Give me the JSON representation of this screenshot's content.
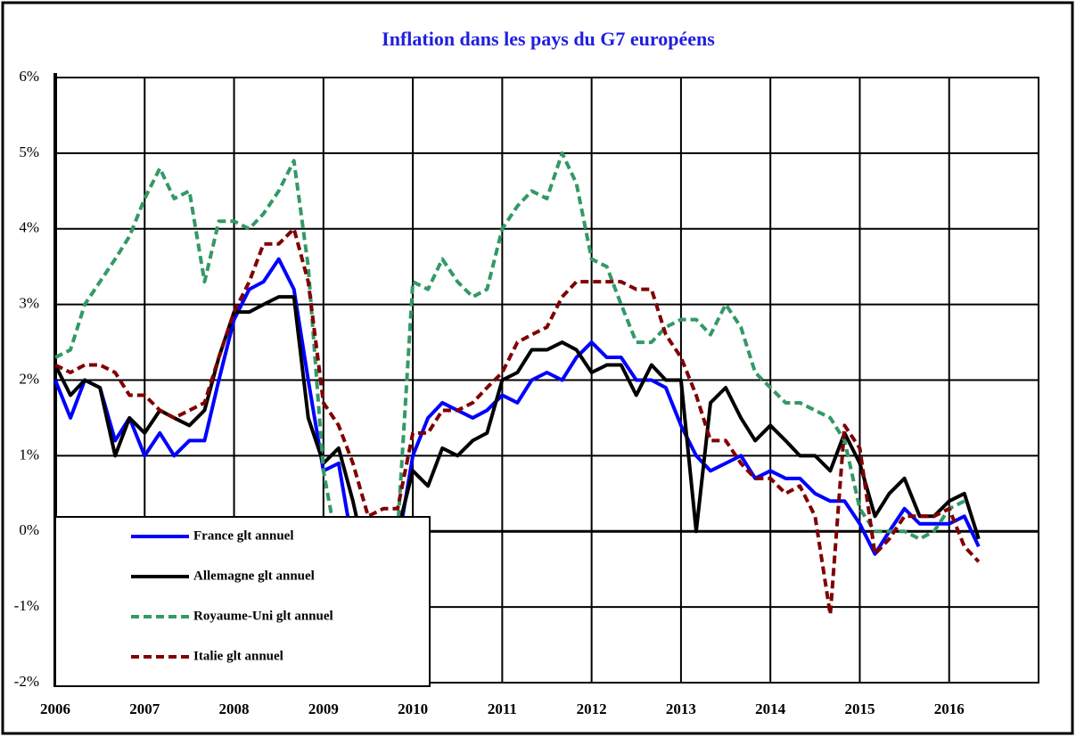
{
  "chart_data": {
    "type": "line",
    "title": "Inflation dans les pays du  G7 européens",
    "x": [
      2006,
      2006.17,
      2006.33,
      2006.5,
      2006.67,
      2006.83,
      2007,
      2007.17,
      2007.33,
      2007.5,
      2007.67,
      2007.83,
      2008,
      2008.17,
      2008.33,
      2008.5,
      2008.67,
      2008.83,
      2009,
      2009.17,
      2009.33,
      2009.5,
      2009.67,
      2009.83,
      2010,
      2010.17,
      2010.33,
      2010.5,
      2010.67,
      2010.83,
      2011,
      2011.17,
      2011.33,
      2011.5,
      2011.67,
      2011.83,
      2012,
      2012.17,
      2012.33,
      2012.5,
      2012.67,
      2012.83,
      2013,
      2013.17,
      2013.33,
      2013.5,
      2013.67,
      2013.83,
      2014,
      2014.17,
      2014.33,
      2014.5,
      2014.67,
      2014.83,
      2015,
      2015.17,
      2015.33,
      2015.5,
      2015.67,
      2015.83,
      2016,
      2016.17,
      2016.33
    ],
    "series": [
      {
        "name": "France glt annuel",
        "color": "#0000ff",
        "dashed": false,
        "values": [
          2.0,
          1.5,
          2.0,
          1.9,
          1.2,
          1.5,
          1.0,
          1.3,
          1.0,
          1.2,
          1.2,
          2.0,
          2.8,
          3.2,
          3.3,
          3.6,
          3.2,
          2.0,
          0.8,
          0.9,
          -0.2,
          -0.7,
          -0.4,
          -0.2,
          1.0,
          1.5,
          1.7,
          1.6,
          1.5,
          1.6,
          1.8,
          1.7,
          2.0,
          2.1,
          2.0,
          2.3,
          2.5,
          2.3,
          2.3,
          2.0,
          2.0,
          1.9,
          1.4,
          1.0,
          0.8,
          0.9,
          1.0,
          0.7,
          0.8,
          0.7,
          0.7,
          0.5,
          0.4,
          0.4,
          0.1,
          -0.3,
          0.0,
          0.3,
          0.1,
          0.1,
          0.1,
          0.2,
          -0.2
        ]
      },
      {
        "name": "Allemagne glt annuel",
        "color": "#000000",
        "dashed": false,
        "values": [
          2.2,
          1.8,
          2.0,
          1.9,
          1.0,
          1.5,
          1.3,
          1.6,
          1.5,
          1.4,
          1.6,
          2.3,
          2.9,
          2.9,
          3.0,
          3.1,
          3.1,
          1.5,
          0.9,
          1.1,
          0.4,
          -0.5,
          -0.3,
          0.0,
          0.8,
          0.6,
          1.1,
          1.0,
          1.2,
          1.3,
          2.0,
          2.1,
          2.4,
          2.4,
          2.5,
          2.4,
          2.1,
          2.2,
          2.2,
          1.8,
          2.2,
          2.0,
          2.0,
          0.0,
          1.7,
          1.9,
          1.5,
          1.2,
          1.4,
          1.2,
          1.0,
          1.0,
          0.8,
          1.3,
          0.9,
          0.2,
          0.5,
          0.7,
          0.2,
          0.2,
          0.4,
          0.5,
          -0.1
        ]
      },
      {
        "name": "Royaume-Uni glt annuel",
        "color": "#339966",
        "dashed": true,
        "values": [
          2.3,
          2.4,
          3.0,
          3.3,
          3.6,
          3.9,
          4.4,
          4.8,
          4.4,
          4.5,
          3.3,
          4.1,
          4.1,
          4.0,
          4.2,
          4.5,
          4.9,
          3.5,
          0.8,
          -0.3,
          -0.5,
          -0.5,
          -0.4,
          0.0,
          3.3,
          3.2,
          3.6,
          3.3,
          3.1,
          3.2,
          4.0,
          4.3,
          4.5,
          4.4,
          5.0,
          4.6,
          3.6,
          3.5,
          3.0,
          2.5,
          2.5,
          2.7,
          2.8,
          2.8,
          2.6,
          3.0,
          2.7,
          2.1,
          1.9,
          1.7,
          1.7,
          1.6,
          1.5,
          1.2,
          0.3,
          0.0,
          0.0,
          0.0,
          -0.1,
          0.0,
          0.3,
          0.4,
          null
        ]
      },
      {
        "name": "Italie glt annuel",
        "color": "#800000",
        "dashed": true,
        "values": [
          2.2,
          2.1,
          2.2,
          2.2,
          2.1,
          1.8,
          1.8,
          1.6,
          1.5,
          1.6,
          1.7,
          2.3,
          2.9,
          3.3,
          3.8,
          3.8,
          4.0,
          3.3,
          1.7,
          1.4,
          0.9,
          0.2,
          0.3,
          0.3,
          1.3,
          1.3,
          1.6,
          1.6,
          1.7,
          1.9,
          2.1,
          2.5,
          2.6,
          2.7,
          3.1,
          3.3,
          3.3,
          3.3,
          3.3,
          3.2,
          3.2,
          2.6,
          2.3,
          1.8,
          1.2,
          1.2,
          0.9,
          0.7,
          0.7,
          0.5,
          0.6,
          0.2,
          -1.1,
          1.4,
          1.1,
          -0.3,
          -0.1,
          0.2,
          0.2,
          0.2,
          0.3,
          -0.2,
          -0.4
        ]
      }
    ],
    "xlim": [
      2006,
      2017
    ],
    "xticks": [
      2006,
      2007,
      2008,
      2009,
      2010,
      2011,
      2012,
      2013,
      2014,
      2015,
      2016
    ],
    "ylim": [
      -2,
      6
    ],
    "yticks": [
      {
        "value": -2,
        "label": "-2%"
      },
      {
        "value": -1,
        "label": "-1%"
      },
      {
        "value": 0,
        "label": "0%"
      },
      {
        "value": 1,
        "label": "1%"
      },
      {
        "value": 2,
        "label": "2%"
      },
      {
        "value": 3,
        "label": "3%"
      },
      {
        "value": 4,
        "label": "4%"
      },
      {
        "value": 5,
        "label": "5%"
      },
      {
        "value": 6,
        "label": "6%"
      }
    ],
    "grid": true,
    "legend": "bottom-left"
  }
}
